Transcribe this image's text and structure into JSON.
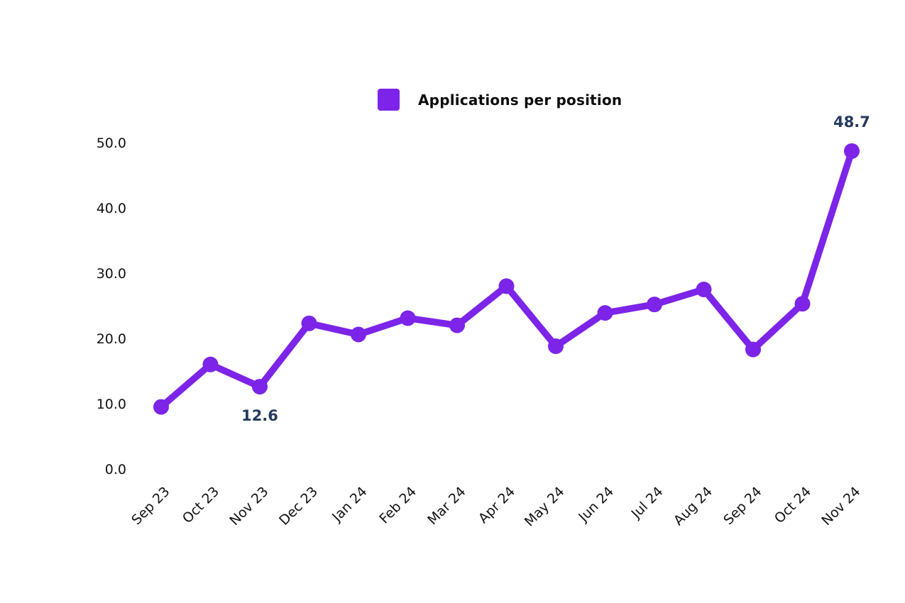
{
  "legend": {
    "label": "Applications per position"
  },
  "chart_data": {
    "type": "line",
    "title": "",
    "legend": "Applications per position",
    "legend_position": "top-center",
    "categories": [
      "Sep 23",
      "Oct 23",
      "Nov 23",
      "Dec 23",
      "Jan 24",
      "Feb 24",
      "Mar 24",
      "Apr 24",
      "May 24",
      "Jun 24",
      "Jul 24",
      "Aug 24",
      "Sep 24",
      "Oct 24",
      "Nov 24"
    ],
    "series": [
      {
        "name": "Applications per position",
        "values": [
          9.5,
          16.0,
          12.6,
          22.3,
          20.6,
          23.1,
          22.0,
          28.0,
          18.8,
          23.9,
          25.2,
          27.5,
          18.3,
          25.3,
          48.7
        ]
      }
    ],
    "yticks": [
      "0.0",
      "10.0",
      "20.0",
      "30.0",
      "40.0",
      "50.0"
    ],
    "ylim": [
      0,
      50
    ],
    "grid": false,
    "x_label_rotation": -45,
    "annotations": [
      {
        "index": 2,
        "label": "12.6",
        "position": "below"
      },
      {
        "index": 14,
        "label": "48.7",
        "position": "above"
      }
    ],
    "colors": {
      "line": "#7C24E8",
      "marker": "#7C24E8",
      "legend_swatch": "#7C24E8",
      "annotation_text": "#253A5E",
      "tick_text": "#111111",
      "background": "#FFFFFF"
    }
  }
}
